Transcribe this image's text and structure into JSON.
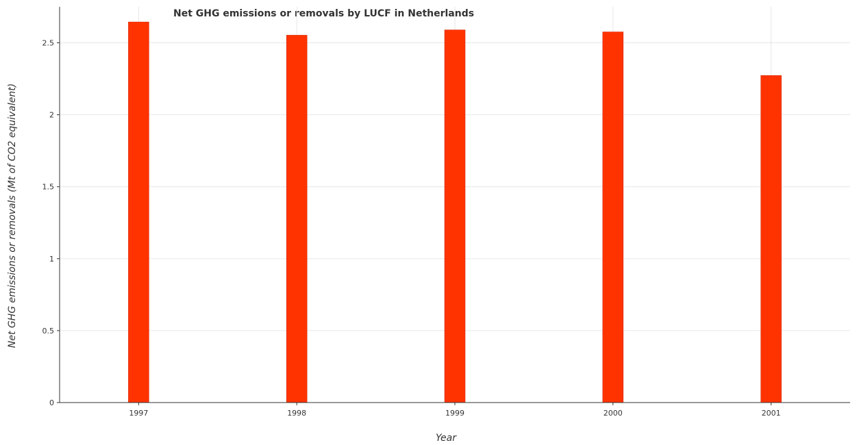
{
  "chart_data": {
    "type": "bar",
    "title": "Net GHG emissions or removals by LUCF in Netherlands",
    "xlabel": "Year",
    "ylabel": "Net GHG emissions or removals (Mt of CO2 equivalent)",
    "categories": [
      "1997",
      "1998",
      "1999",
      "2000",
      "2001"
    ],
    "values": [
      2.645,
      2.553,
      2.59,
      2.576,
      2.273
    ],
    "ylim": [
      0,
      2.75
    ],
    "yticks": [
      0,
      0.5,
      1,
      1.5,
      2,
      2.5
    ],
    "ytick_labels": [
      "0",
      "0.5",
      "1",
      "1.5",
      "2",
      "2.5"
    ],
    "grid": true,
    "bar_color": "#ff3300",
    "bar_edge_color": "#cc2200"
  }
}
